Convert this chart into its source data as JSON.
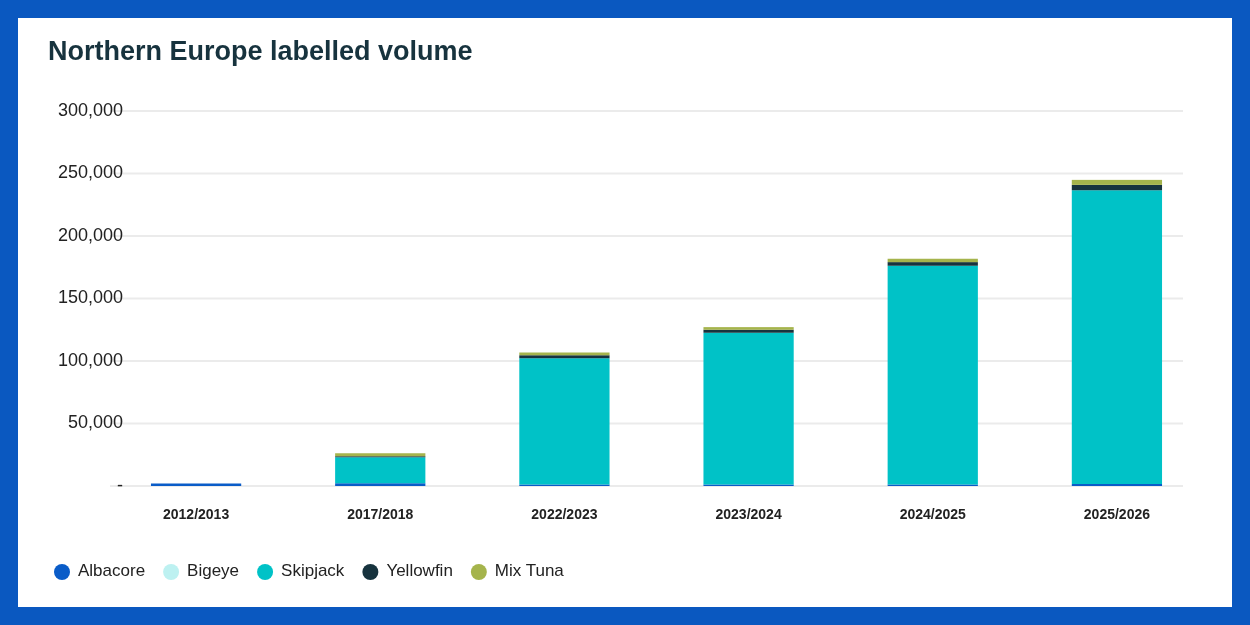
{
  "chart_data": {
    "type": "bar",
    "title": "Northern Europe labelled volume",
    "categories": [
      "2012/2013",
      "2017/2018",
      "2022/2023",
      "2023/2024",
      "2024/2025",
      "2025/2026"
    ],
    "stacked": true,
    "series": [
      {
        "name": "Albacore",
        "color": "#0a5cc8",
        "values": [
          2000,
          2200,
          1200,
          1200,
          1200,
          1600
        ]
      },
      {
        "name": "Bigeye",
        "color": "#bdf1f1",
        "values": [
          null,
          null,
          null,
          null,
          null,
          null
        ]
      },
      {
        "name": "Skipjack",
        "color": "#00c2c7",
        "values": [
          null,
          20800,
          101000,
          121400,
          175000,
          235000
        ]
      },
      {
        "name": "Yellowfin",
        "color": "#17333e",
        "values": [
          null,
          800,
          2400,
          2400,
          2900,
          4300
        ]
      },
      {
        "name": "Mix Tuna",
        "color": "#a5b44c",
        "values": [
          null,
          2400,
          2200,
          2100,
          2700,
          4000
        ]
      }
    ],
    "ylim": [
      0,
      300000
    ],
    "yticks": [
      {
        "value": 0,
        "label": "-"
      },
      {
        "value": 50000,
        "label": "50,000"
      },
      {
        "value": 100000,
        "label": "100,000"
      },
      {
        "value": 150000,
        "label": "150,000"
      },
      {
        "value": 200000,
        "label": "200,000"
      },
      {
        "value": 250000,
        "label": "250,000"
      },
      {
        "value": 300000,
        "label": "300,000"
      }
    ],
    "grid": "y",
    "legend": "bottom"
  }
}
